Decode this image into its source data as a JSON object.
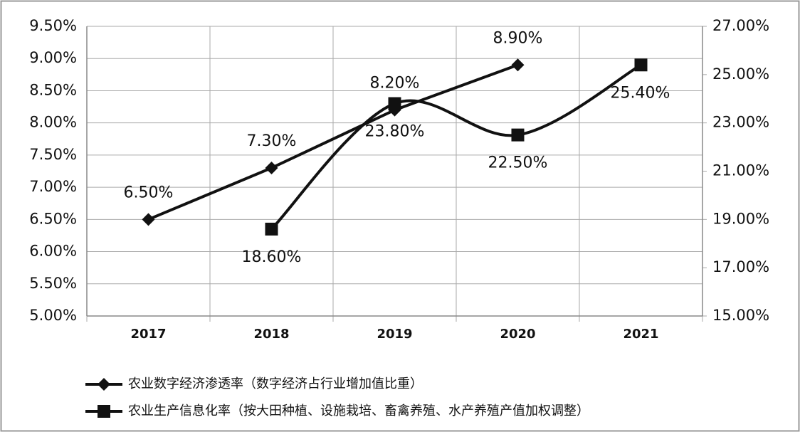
{
  "chart_data": {
    "type": "line",
    "categories": [
      "2017",
      "2018",
      "2019",
      "2020",
      "2021"
    ],
    "series": [
      {
        "name": "农业数字经济渗透率（数字经济占行业增加值比重）",
        "color": "#111111",
        "marker": "diamond",
        "values": [
          6.5,
          7.3,
          8.2,
          8.9,
          null
        ],
        "value_labels": [
          "6.50%",
          "7.30%",
          "8.20%",
          "8.90%",
          null
        ]
      },
      {
        "name": "农业生产信息化率（按大田种植、设施栽培、畜禽养殖、水产养殖产值加权调整）",
        "color": "#111111",
        "marker": "square",
        "axis": "y2",
        "smooth": true,
        "values": [
          null,
          18.6,
          23.8,
          22.5,
          25.4
        ],
        "value_labels": [
          null,
          "18.60%",
          "23.80%",
          "22.50%",
          "25.40%"
        ]
      }
    ],
    "ylim": [
      5,
      9.5
    ],
    "yticks": [
      {
        "value": 5,
        "label": "5.00%"
      },
      {
        "value": 5.5,
        "label": "5.50%"
      },
      {
        "value": 6,
        "label": "6.00%"
      },
      {
        "value": 6.5,
        "label": "6.50%"
      },
      {
        "value": 7,
        "label": "7.00%"
      },
      {
        "value": 7.5,
        "label": "7.50%"
      },
      {
        "value": 8,
        "label": "8.00%"
      },
      {
        "value": 8.5,
        "label": "8.50%"
      },
      {
        "value": 9,
        "label": "9.00%"
      },
      {
        "value": 9.5,
        "label": "9.50%"
      }
    ],
    "y2lim": [
      15,
      27
    ],
    "y2ticks": [
      {
        "value": 15,
        "label": "15.00%"
      },
      {
        "value": 17,
        "label": "17.00%"
      },
      {
        "value": 19,
        "label": "19.00%"
      },
      {
        "value": 21,
        "label": "21.00%"
      },
      {
        "value": 23,
        "label": "23.00%"
      },
      {
        "value": 25,
        "label": "25.00%"
      },
      {
        "value": 27,
        "label": "27.00%"
      }
    ],
    "grid": true,
    "legend": "bottom"
  }
}
